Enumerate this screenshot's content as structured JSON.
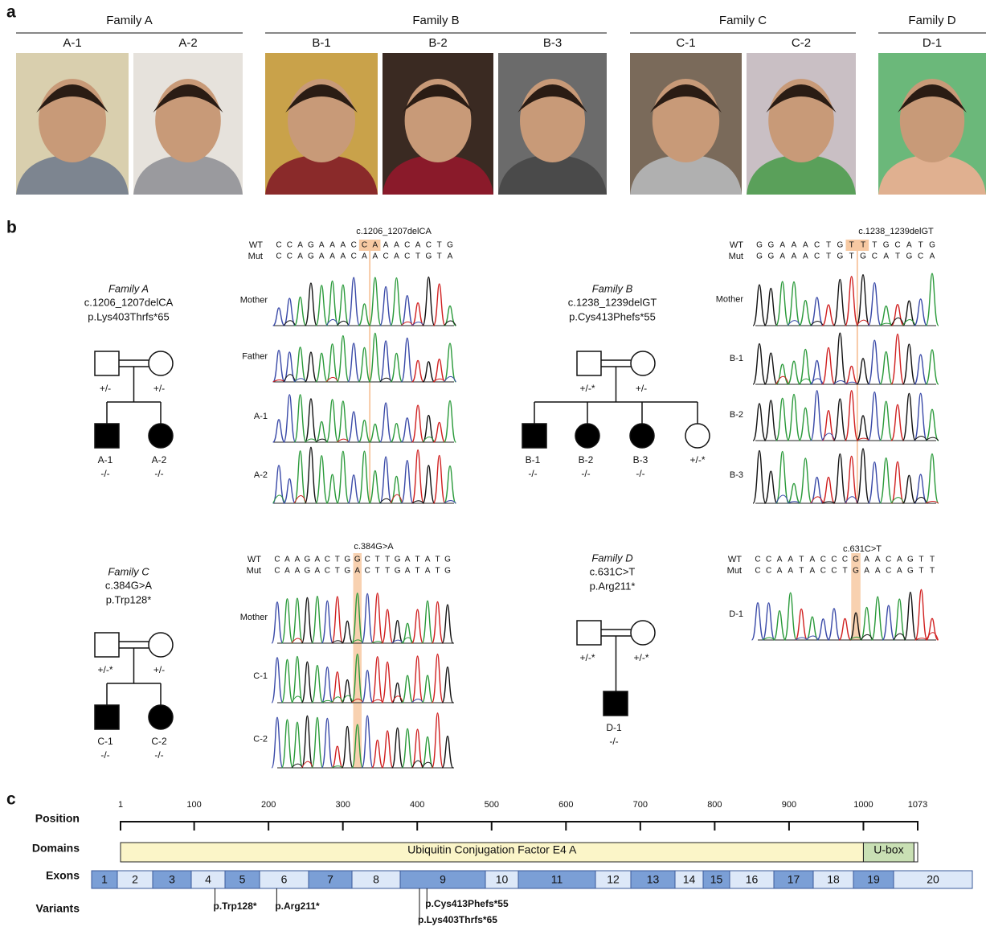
{
  "panel_labels": [
    "a",
    "b",
    "c"
  ],
  "panel_a": {
    "families": [
      {
        "name": "Family A",
        "members": [
          "A-1",
          "A-2"
        ]
      },
      {
        "name": "Family B",
        "members": [
          "B-1",
          "B-2",
          "B-3"
        ]
      },
      {
        "name": "Family C",
        "members": [
          "C-1",
          "C-2"
        ]
      },
      {
        "name": "Family D",
        "members": [
          "D-1"
        ]
      }
    ]
  },
  "panel_b": {
    "families": [
      {
        "name": "Family A",
        "cdna": "c.1206_1207delCA",
        "protein": "p.Lys403Thrfs*65",
        "father": "+/-",
        "mother": "+/-",
        "children": [
          {
            "id": "A-1",
            "sex": "male",
            "affected": true,
            "genotype": "-/-"
          },
          {
            "id": "A-2",
            "sex": "female",
            "affected": true,
            "genotype": "-/-"
          }
        ],
        "sequence": {
          "variant": "c.1206_1207delCA",
          "wt_label": "WT",
          "wt": "CCAGAAACCAAACACTG",
          "mut_label": "Mut",
          "mut": "CCAGAAACAACACTGTA",
          "traces": [
            "Mother",
            "Father",
            "A-1",
            "A-2"
          ]
        }
      },
      {
        "name": "Family B",
        "cdna": "c.1238_1239delGT",
        "protein": "p.Cys413Phefs*55",
        "father": "+/-*",
        "mother": "+/-",
        "children": [
          {
            "id": "B-1",
            "sex": "male",
            "affected": true,
            "genotype": "-/-"
          },
          {
            "id": "B-2",
            "sex": "female",
            "affected": true,
            "genotype": "-/-"
          },
          {
            "id": "B-3",
            "sex": "female",
            "affected": true,
            "genotype": "-/-"
          },
          {
            "sex": "female",
            "affected": false,
            "genotype": "+/-*"
          }
        ],
        "sequence": {
          "variant": "c.1238_1239delGT",
          "wt_label": "WT",
          "wt": "GGAAACTGTTTGCATG",
          "mut_label": "Mut",
          "mut": "GGAAACTGTGCATGCA",
          "traces": [
            "Mother",
            "B-1",
            "B-2",
            "B-3"
          ]
        }
      },
      {
        "name": "Family C",
        "cdna": "c.384G>A",
        "protein": "p.Trp128*",
        "father": "+/-*",
        "mother": "+/-",
        "children": [
          {
            "id": "C-1",
            "sex": "male",
            "affected": true,
            "genotype": "-/-"
          },
          {
            "id": "C-2",
            "sex": "female",
            "affected": true,
            "genotype": "-/-"
          }
        ],
        "sequence": {
          "variant": "c.384G>A",
          "wt_label": "WT",
          "wt": "CAAGACTGGCTTGATATG",
          "mut_label": "Mut",
          "mut": "CAAGACTGACTTGATATG",
          "traces": [
            "Mother",
            "C-1",
            "C-2"
          ]
        }
      },
      {
        "name": "Family D",
        "cdna": "c.631C>T",
        "protein": "p.Arg211*",
        "father": "+/-*",
        "mother": "+/-*",
        "children": [
          {
            "id": "D-1",
            "sex": "male",
            "affected": true,
            "genotype": "-/-"
          }
        ],
        "sequence": {
          "variant": "c.631C>T",
          "wt_label": "WT",
          "wt": "CCAATACCCGAACAGTT",
          "mut_label": "Mut",
          "mut": "CCAATACCTGAACAGTT",
          "traces": [
            "D-1"
          ]
        }
      }
    ]
  },
  "panel_c": {
    "row_labels": [
      "Position",
      "Domains",
      "Exons",
      "Variants"
    ],
    "xlim": [
      1,
      1073
    ],
    "xticks": [
      1,
      100,
      200,
      300,
      400,
      500,
      600,
      700,
      800,
      900,
      1000,
      1073
    ],
    "domains": [
      {
        "name": "Ubiquitin Conjugation Factor E4 A",
        "start": 1,
        "end": 1000,
        "color": "#fbf5c8"
      },
      {
        "name": "U-box",
        "start": 1000,
        "end": 1068,
        "color": "#c9e0b4"
      }
    ],
    "exons": [
      "1",
      "2",
      "3",
      "4",
      "5",
      "6",
      "7",
      "8",
      "9",
      "10",
      "11",
      "12",
      "13",
      "14",
      "15",
      "16",
      "17",
      "18",
      "19",
      "20"
    ],
    "exon_colors": [
      "#7b9fd6",
      "#dde8f8"
    ],
    "variants": [
      {
        "label": "p.Trp128*",
        "position": 128
      },
      {
        "label": "p.Arg211*",
        "position": 211
      },
      {
        "label": "p.Cys413Phefs*55",
        "position": 413
      },
      {
        "label": "p.Lys403Thrfs*65",
        "position": 403
      }
    ]
  }
}
